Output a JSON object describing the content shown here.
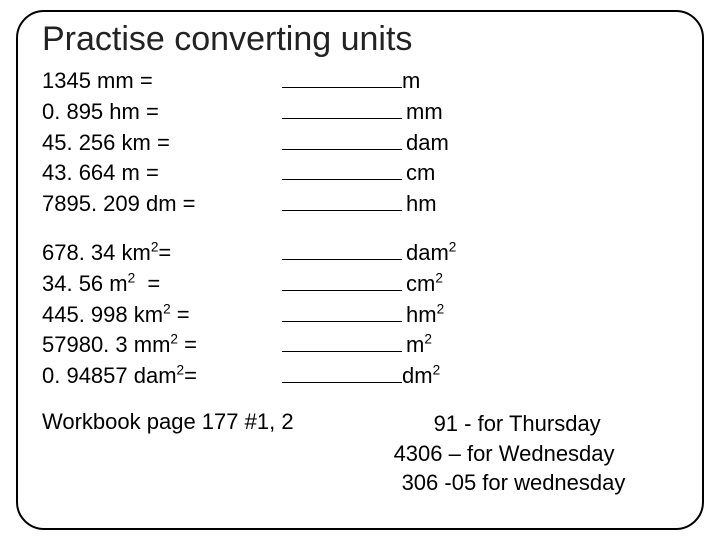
{
  "title": "Practise converting units",
  "group1": [
    {
      "left": "1345 mm =",
      "unit": "m",
      "gap": "nospace"
    },
    {
      "left": "0. 895 hm =",
      "unit": "mm",
      "gap": "space"
    },
    {
      "left": "45. 256 km =",
      "unit": "dam",
      "gap": "space"
    },
    {
      "left": "43. 664 m =",
      "unit": "cm",
      "gap": "space"
    },
    {
      "left": "7895. 209 dm =",
      "unit": "hm",
      "gap": "space"
    }
  ],
  "group2": [
    {
      "left": "678. 34 km",
      "lsup": "2",
      "ltail": "=",
      "unit": "dam",
      "usup": "2",
      "gap": "space"
    },
    {
      "left": "34. 56 m",
      "lsup": "2",
      "ltail": "  =",
      "unit": "cm",
      "usup": "2",
      "gap": "space"
    },
    {
      "left": "445. 998 km",
      "lsup": "2",
      "ltail": " =",
      "unit": "hm",
      "usup": "2",
      "gap": "space"
    },
    {
      "left": "57980. 3 mm",
      "lsup": "2",
      "ltail": " =",
      "unit": "m",
      "usup": "2",
      "gap": "space"
    },
    {
      "left": "0. 94857 dam",
      "lsup": "2",
      "ltail": "=",
      "unit": "dm",
      "usup": "2",
      "gap": "nospace"
    }
  ],
  "footer": {
    "left": "Workbook page 177 #1, 2",
    "right": [
      "91 - for Thursday",
      "4306 – for Wednesday",
      " 306 -05 for wednesday"
    ]
  },
  "colors": {
    "text": "#000000",
    "bg": "#ffffff",
    "border": "#000000"
  }
}
